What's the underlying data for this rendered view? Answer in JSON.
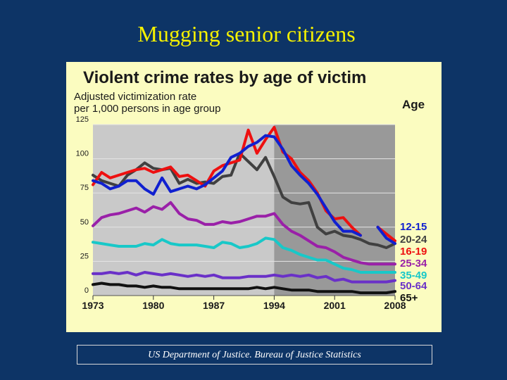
{
  "slide": {
    "title": "Mugging senior citizens",
    "source": "US Department of Justice. Bureau of Justice Statistics"
  },
  "chart_data": {
    "type": "line",
    "title": "Violent crime rates by age of victim",
    "subtitle_lines": [
      "Adjusted victimization rate",
      "per 1,000 persons in age group"
    ],
    "legend_title": "Age",
    "legend_placement": "right",
    "ylim": [
      0,
      125
    ],
    "yticks": [
      0,
      25,
      50,
      75,
      100,
      125
    ],
    "xlim": [
      1973,
      2008
    ],
    "xticks": [
      1973,
      1980,
      1987,
      1994,
      2001,
      2008
    ],
    "shaded_from": 1994,
    "grid": true,
    "background_colors": {
      "panel": "#fbfcc0",
      "plot": "#c9c9c9",
      "shaded": "#999999"
    },
    "series": [
      {
        "name": "65+",
        "color": "#111111",
        "x": [
          1973,
          1974,
          1975,
          1976,
          1977,
          1978,
          1979,
          1980,
          1981,
          1982,
          1983,
          1984,
          1985,
          1986,
          1987,
          1988,
          1989,
          1990,
          1991,
          1992,
          1993,
          1994,
          1995,
          1996,
          1997,
          1998,
          1999,
          2000,
          2001,
          2002,
          2003,
          2004,
          2005,
          2006,
          2007,
          2008
        ],
        "values": [
          8,
          9,
          8,
          8,
          7,
          7,
          6,
          7,
          6,
          6,
          5,
          5,
          5,
          5,
          5,
          5,
          5,
          5,
          5,
          6,
          5,
          6,
          5,
          4,
          4,
          4,
          3,
          3,
          3,
          3,
          3,
          2,
          2,
          2,
          2,
          3
        ]
      },
      {
        "name": "50-64",
        "color": "#6a30c8",
        "x": [
          1973,
          1974,
          1975,
          1976,
          1977,
          1978,
          1979,
          1980,
          1981,
          1982,
          1983,
          1984,
          1985,
          1986,
          1987,
          1988,
          1989,
          1990,
          1991,
          1992,
          1993,
          1994,
          1995,
          1996,
          1997,
          1998,
          1999,
          2000,
          2001,
          2002,
          2003,
          2004,
          2005,
          2006,
          2007,
          2008
        ],
        "values": [
          16,
          16,
          17,
          16,
          17,
          15,
          17,
          16,
          15,
          16,
          15,
          14,
          15,
          14,
          15,
          13,
          13,
          13,
          14,
          14,
          14,
          15,
          14,
          15,
          14,
          15,
          13,
          14,
          11,
          12,
          10,
          10,
          10,
          10,
          10,
          11
        ]
      },
      {
        "name": "35-49",
        "color": "#18c8c8",
        "x": [
          1973,
          1974,
          1975,
          1976,
          1977,
          1978,
          1979,
          1980,
          1981,
          1982,
          1983,
          1984,
          1985,
          1986,
          1987,
          1988,
          1989,
          1990,
          1991,
          1992,
          1993,
          1994,
          1995,
          1996,
          1997,
          1998,
          1999,
          2000,
          2001,
          2002,
          2003,
          2004,
          2005,
          2006,
          2007,
          2008
        ],
        "values": [
          39,
          38,
          37,
          36,
          36,
          36,
          38,
          37,
          41,
          38,
          37,
          37,
          37,
          36,
          35,
          39,
          38,
          35,
          36,
          38,
          42,
          41,
          35,
          33,
          30,
          28,
          26,
          26,
          23,
          20,
          19,
          17,
          17,
          17,
          17,
          17
        ]
      },
      {
        "name": "25-34",
        "color": "#9a20a8",
        "x": [
          1973,
          1974,
          1975,
          1976,
          1977,
          1978,
          1979,
          1980,
          1981,
          1982,
          1983,
          1984,
          1985,
          1986,
          1987,
          1988,
          1989,
          1990,
          1991,
          1992,
          1993,
          1994,
          1995,
          1996,
          1997,
          1998,
          1999,
          2000,
          2001,
          2002,
          2003,
          2004,
          2005,
          2006,
          2007,
          2008
        ],
        "values": [
          51,
          57,
          59,
          60,
          62,
          64,
          61,
          65,
          63,
          68,
          60,
          56,
          55,
          52,
          52,
          54,
          53,
          54,
          56,
          58,
          58,
          60,
          52,
          47,
          44,
          40,
          36,
          35,
          32,
          28,
          26,
          24,
          23,
          23,
          23,
          23
        ]
      },
      {
        "name": "20-24",
        "color": "#404040",
        "x": [
          1973,
          1974,
          1975,
          1976,
          1977,
          1978,
          1979,
          1980,
          1981,
          1982,
          1983,
          1984,
          1985,
          1986,
          1987,
          1988,
          1989,
          1990,
          1991,
          1992,
          1993,
          1994,
          1995,
          1996,
          1997,
          1998,
          1999,
          2000,
          2001,
          2002,
          2003,
          2004,
          2005,
          2006,
          2007,
          2008
        ],
        "values": [
          88,
          84,
          82,
          80,
          88,
          92,
          97,
          93,
          92,
          93,
          82,
          85,
          82,
          83,
          82,
          87,
          88,
          104,
          98,
          92,
          101,
          87,
          72,
          68,
          67,
          68,
          50,
          45,
          47,
          44,
          43,
          41,
          38,
          37,
          35,
          38
        ]
      },
      {
        "name": "16-19",
        "color": "#ee1010",
        "x": [
          1973,
          1974,
          1975,
          1976,
          1977,
          1978,
          1979,
          1980,
          1981,
          1982,
          1983,
          1984,
          1985,
          1986,
          1987,
          1988,
          1989,
          1990,
          1991,
          1992,
          1993,
          1994,
          1995,
          1996,
          1997,
          1998,
          1999,
          2000,
          2001,
          2002,
          2003,
          2004,
          2006,
          2007,
          2008
        ],
        "values": [
          81,
          90,
          86,
          88,
          90,
          92,
          93,
          90,
          92,
          94,
          87,
          88,
          84,
          80,
          91,
          95,
          97,
          99,
          121,
          104,
          114,
          123,
          105,
          100,
          90,
          84,
          75,
          62,
          56,
          57,
          50,
          44,
          50,
          45,
          40
        ]
      },
      {
        "name": "12-15",
        "color": "#1020d0",
        "x": [
          1973,
          1974,
          1975,
          1976,
          1977,
          1978,
          1979,
          1980,
          1981,
          1982,
          1983,
          1984,
          1985,
          1986,
          1987,
          1988,
          1989,
          1990,
          1991,
          1992,
          1993,
          1994,
          1995,
          1996,
          1997,
          1998,
          1999,
          2000,
          2001,
          2002,
          2003,
          2004,
          2006,
          2007,
          2008
        ],
        "values": [
          84,
          82,
          78,
          80,
          84,
          84,
          78,
          74,
          86,
          76,
          78,
          80,
          78,
          81,
          86,
          91,
          101,
          104,
          109,
          112,
          117,
          116,
          107,
          95,
          88,
          82,
          74,
          64,
          54,
          47,
          47,
          44,
          50,
          42,
          38
        ]
      }
    ]
  }
}
